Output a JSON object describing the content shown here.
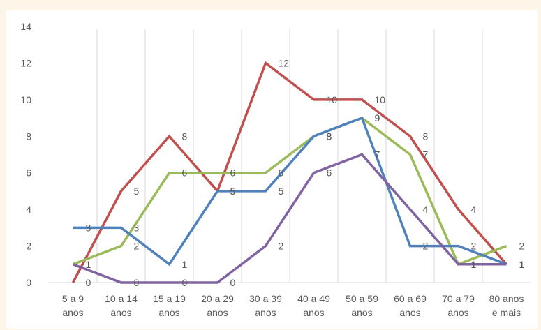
{
  "chart_data": {
    "type": "line",
    "categories": [
      [
        "5 a 9",
        "anos"
      ],
      [
        "10 a 14",
        "anos"
      ],
      [
        "15 a 19",
        "anos"
      ],
      [
        "20 a 29",
        "anos"
      ],
      [
        "30 a 39",
        "anos"
      ],
      [
        "40 a 49",
        "anos"
      ],
      [
        "50 a 59",
        "anos"
      ],
      [
        "60 a 69",
        "anos"
      ],
      [
        "70 a 79",
        "anos"
      ],
      [
        "80 anos",
        "e mais"
      ]
    ],
    "ylim": [
      0,
      14
    ],
    "yticks": [
      0,
      2,
      4,
      6,
      8,
      10,
      12,
      14
    ],
    "grid": "vertical",
    "series": [
      {
        "color": "#c0504d",
        "values": [
          0,
          5,
          8,
          5,
          12,
          10,
          10,
          8,
          4,
          1
        ]
      },
      {
        "color": "#9bbb59",
        "values": [
          1,
          2,
          6,
          6,
          6,
          8,
          9,
          7,
          1,
          2
        ]
      },
      {
        "color": "#4f81bd",
        "values": [
          3,
          3,
          1,
          5,
          5,
          8,
          9,
          2,
          2,
          1
        ]
      },
      {
        "color": "#8064a2",
        "values": [
          1,
          0,
          0,
          0,
          2,
          6,
          7,
          4,
          1,
          1
        ]
      }
    ]
  }
}
